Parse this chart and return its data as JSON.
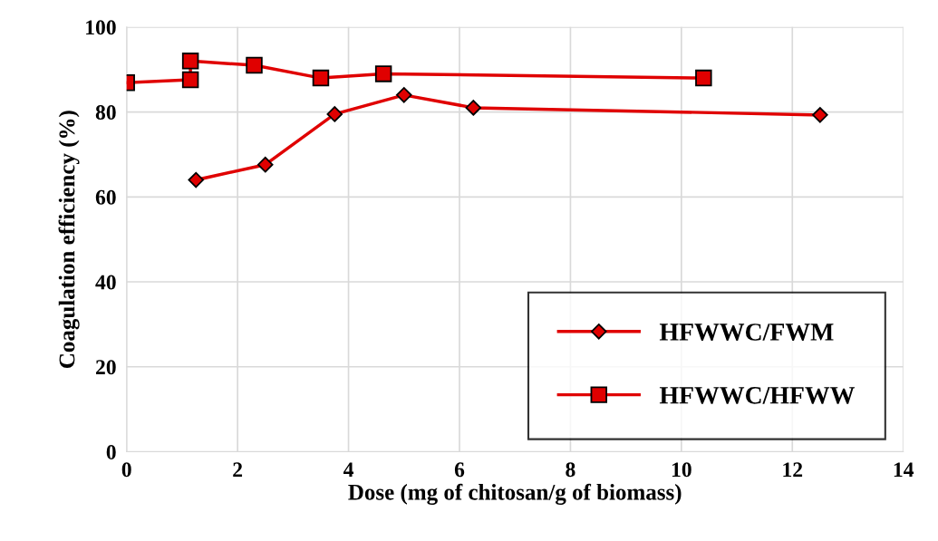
{
  "chart_data": {
    "type": "line",
    "xlabel": "Dose (mg of chitosan/g of biomass)",
    "ylabel": "Coagulation efficiency (%)",
    "xlim": [
      0,
      14
    ],
    "xticks": [
      0,
      2,
      4,
      6,
      8,
      10,
      12,
      14
    ],
    "ylim": [
      0,
      100
    ],
    "yticks": [
      0,
      20,
      40,
      60,
      80,
      100
    ],
    "grid": true,
    "legend": "bottom right",
    "series": [
      {
        "name": "HFWWC/FWM",
        "color": "#e00000",
        "marker": "diamond",
        "x": [
          1.25,
          2.5,
          3.75,
          5.0,
          6.25,
          12.5
        ],
        "values": [
          64.0,
          67.6,
          79.5,
          84.0,
          81.0,
          79.3
        ]
      },
      {
        "name": "HFWWC/HFWW",
        "color": "#e00000",
        "marker": "square",
        "x": [
          0,
          1.15,
          1.15,
          2.3,
          3.5,
          4.63,
          10.4
        ],
        "values": [
          86.9,
          87.6,
          92.0,
          91.0,
          88.0,
          89.0,
          88.0
        ]
      }
    ]
  }
}
